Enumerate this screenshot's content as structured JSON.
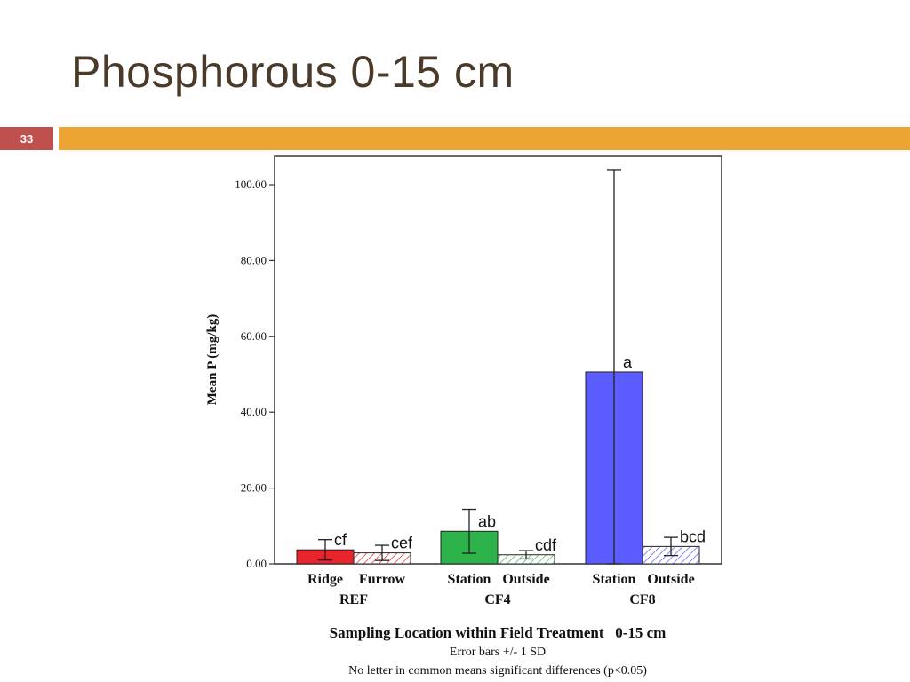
{
  "slide": {
    "title": "Phosphorous 0-15 cm",
    "number": "33",
    "accent_color": "#eca433",
    "number_color": "#c0504d"
  },
  "chart_data": {
    "type": "bar",
    "ylabel": "Mean P (mg/kg)",
    "xlabel": "Sampling Location within Field Treatment   0-15 cm",
    "notes": [
      "Error bars +/- 1 SD",
      "No letter in common means significant differences (p<0.05)"
    ],
    "ylim": [
      0,
      107.5
    ],
    "yticks": [
      0,
      20,
      40,
      60,
      80,
      100
    ],
    "ytick_labels": [
      "0.00",
      "20.00",
      "40.00",
      "60.00",
      "80.00",
      "100.00"
    ],
    "groups": [
      {
        "label": "REF",
        "color": "#e8252c"
      },
      {
        "label": "CF4",
        "color": "#2db34a"
      },
      {
        "label": "CF8",
        "color": "#5a5cff"
      }
    ],
    "categories": [
      "Ridge",
      "Furrow",
      "Station",
      "Outside",
      "Station",
      "Outside"
    ],
    "bars": [
      {
        "category": "Ridge",
        "group": 0,
        "value": 3.7,
        "sd": 2.7,
        "letter": "cf",
        "pattern": "solid"
      },
      {
        "category": "Furrow",
        "group": 0,
        "value": 2.9,
        "sd": 2.0,
        "letter": "cef",
        "pattern": "hatched"
      },
      {
        "category": "Station",
        "group": 1,
        "value": 8.6,
        "sd": 5.8,
        "letter": "ab",
        "pattern": "solid"
      },
      {
        "category": "Outside",
        "group": 1,
        "value": 2.4,
        "sd": 1.1,
        "letter": "cdf",
        "pattern": "hatched"
      },
      {
        "category": "Station",
        "group": 2,
        "value": 50.6,
        "sd": 53.4,
        "letter": "a",
        "pattern": "solid"
      },
      {
        "category": "Outside",
        "group": 2,
        "value": 4.6,
        "sd": 2.4,
        "letter": "bcd",
        "pattern": "hatched"
      }
    ]
  }
}
